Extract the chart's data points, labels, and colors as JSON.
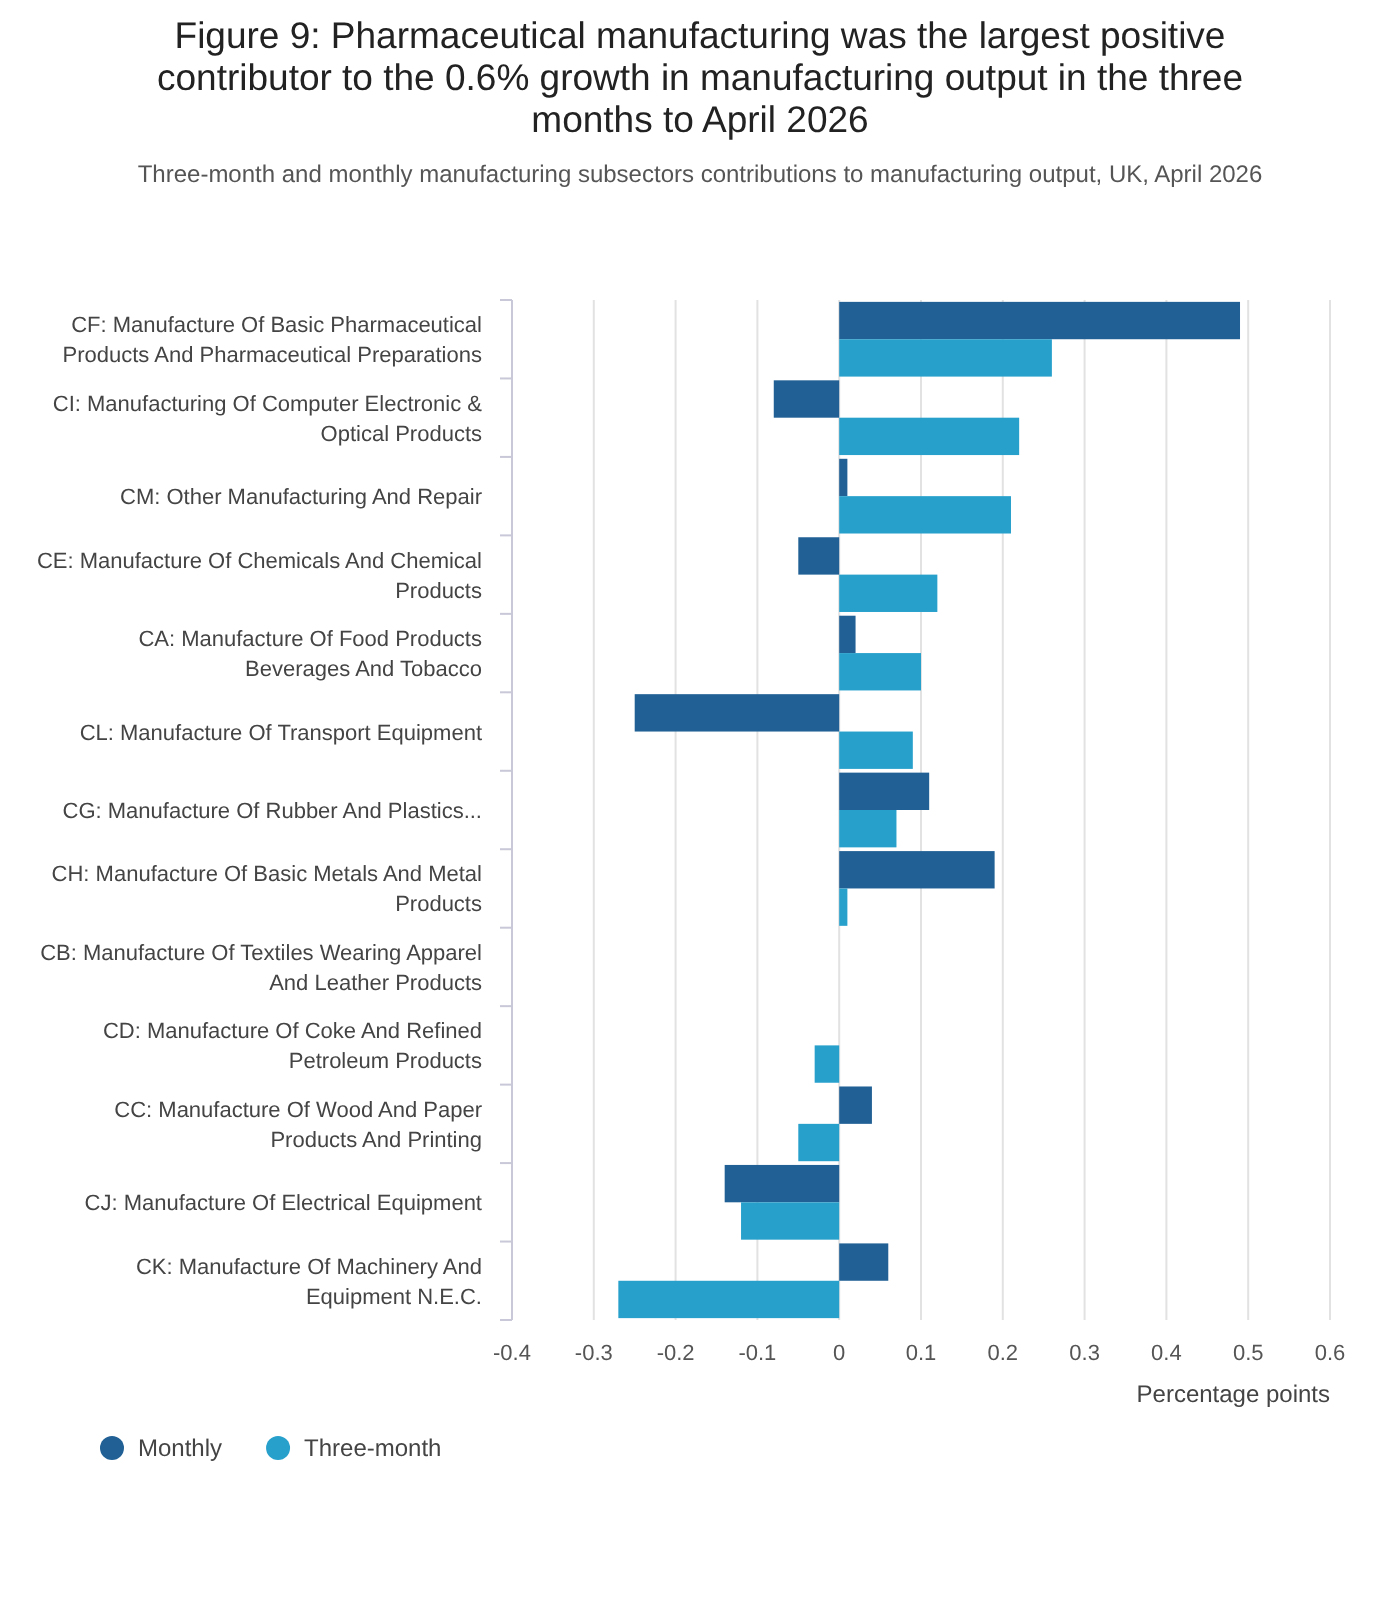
{
  "chart_data": {
    "type": "bar",
    "orientation": "horizontal",
    "title": "Figure 9: Pharmaceutical manufacturing was the largest positive contributor to the 0.6% growth in manufacturing output in the three months to April 2026",
    "subtitle": "Three-month and monthly manufacturing subsectors contributions to manufacturing output, UK, April 2026",
    "xlabel": "Percentage points",
    "categories": [
      "CF: Manufacture Of Basic Pharmaceutical Products And Pharmaceutical Preparations",
      "CI: Manufacturing Of Computer Electronic & Optical Products",
      "CM: Other Manufacturing And Repair",
      "CE: Manufacture Of Chemicals And Chemical Products",
      "CA: Manufacture Of Food Products Beverages And Tobacco",
      "CL: Manufacture Of Transport Equipment",
      "CG: Manufacture Of Rubber And Plastics...",
      "CH: Manufacture Of Basic Metals And Metal Products",
      "CB: Manufacture Of Textiles Wearing Apparel And Leather Products",
      "CD: Manufacture Of Coke And Refined Petroleum Products",
      "CC: Manufacture Of Wood And Paper Products And Printing",
      "CJ: Manufacture Of Electrical Equipment",
      "CK: Manufacture Of Machinery And Equipment N.E.C."
    ],
    "series": [
      {
        "name": "Monthly",
        "color": "#206095",
        "values": [
          0.49,
          -0.08,
          0.01,
          -0.05,
          0.02,
          -0.25,
          0.11,
          0.19,
          0,
          0,
          0.04,
          -0.14,
          0.06
        ]
      },
      {
        "name": "Three-month",
        "color": "#27a0cc",
        "values": [
          0.26,
          0.22,
          0.21,
          0.12,
          0.1,
          0.09,
          0.07,
          0.01,
          0,
          -0.03,
          -0.05,
          -0.12,
          -0.27
        ]
      }
    ],
    "xlim": [
      -0.4,
      0.6
    ],
    "xticks": [
      -0.4,
      -0.3,
      -0.2,
      -0.1,
      0,
      0.1,
      0.2,
      0.3,
      0.4,
      0.5,
      0.6
    ],
    "grid": "x",
    "legend": "bottom left"
  }
}
